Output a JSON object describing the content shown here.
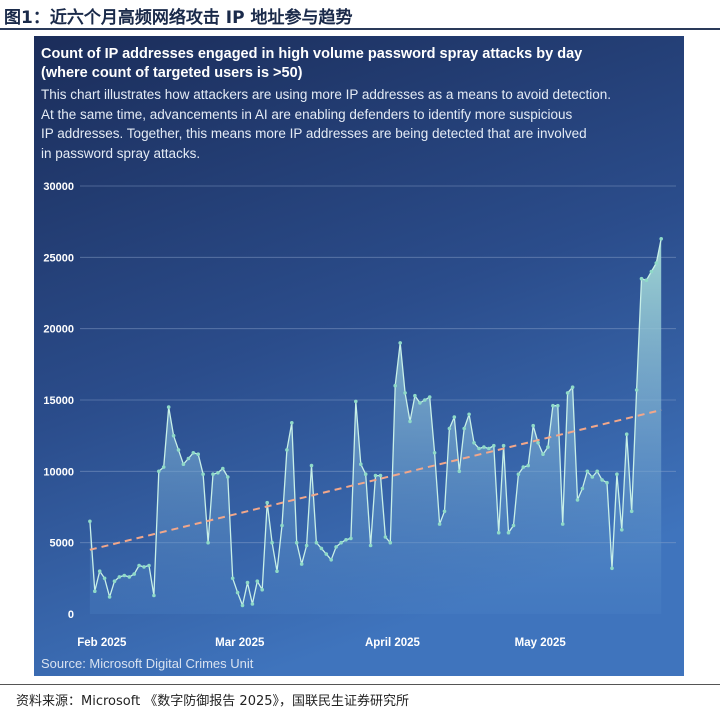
{
  "figure_title": "图1：近六个月高频网络攻击 IP 地址参与趋势",
  "footnote": "资料来源：Microsoft 《数字防御报告 2025》，国联民生证券研究所",
  "colors": {
    "bg_top": "#1b2d5a",
    "bg_bottom": "#3d6fb8",
    "area_top": "#9fd6d4",
    "line": "#c8f0e8",
    "marker": "#8fdac8",
    "trend": "#f2a78a",
    "grid": "#8ea6cc"
  },
  "chart_data": {
    "type": "area",
    "title": "Count of IP addresses engaged in high volume password spray attacks by day",
    "title_line2": "(where count of targeted users is >50)",
    "subtitle": [
      "This chart illustrates how attackers are using more IP addresses as a means to avoid detection.",
      "At the same time, advancements in AI are enabling defenders to identify more suspicious",
      "IP addresses. Together, this means more IP addresses are being detected that are involved",
      "in password spray attacks."
    ],
    "source": "Source: Microsoft Digital Crimes Unit",
    "y_ticks": [
      "30000",
      "25000",
      "20000",
      "15000",
      "10000",
      "5000",
      "0"
    ],
    "ylim": [
      0,
      30000
    ],
    "x_ticks": [
      {
        "label": "Feb 2025",
        "day": 0
      },
      {
        "label": "Mar 2025",
        "day": 28
      },
      {
        "label": "April 2025",
        "day": 59
      },
      {
        "label": "May 2025",
        "day": 89
      }
    ],
    "xlim": [
      -2,
      119
    ],
    "series": [
      {
        "name": "IP addresses",
        "values": [
          6500,
          1600,
          3000,
          2500,
          1200,
          2300,
          2600,
          2700,
          2600,
          2800,
          3400,
          3300,
          3400,
          1300,
          10000,
          10300,
          14500,
          12500,
          11500,
          10500,
          10900,
          11300,
          11200,
          9800,
          5000,
          9800,
          9900,
          10200,
          9600,
          2500,
          1500,
          600,
          2200,
          700,
          2300,
          1700,
          7800,
          5000,
          3000,
          6200,
          11500,
          13400,
          5000,
          3500,
          4800,
          10400,
          5000,
          4600,
          4200,
          3800,
          4700,
          5000,
          5200,
          5300,
          14900,
          10500,
          9800,
          4800,
          9700,
          9700,
          5400,
          5000,
          16000,
          19000,
          15500,
          13500,
          15300,
          14800,
          15000,
          15200,
          11300,
          6300,
          7200,
          13000,
          13800,
          10000,
          13000,
          14000,
          12000,
          11600,
          11700,
          11600,
          11800,
          5700,
          11800,
          5700,
          6200,
          9800,
          10300,
          10400,
          13200,
          12000,
          11200,
          11700,
          14600,
          14600,
          6300,
          15500,
          15900,
          8000,
          8800,
          10000,
          9600,
          10000,
          9400,
          9200,
          3200,
          9800,
          5900,
          12600,
          7200,
          15700,
          23500,
          23400,
          24000,
          24600,
          26300
        ],
        "trend": [
          4500,
          14300
        ]
      }
    ]
  }
}
